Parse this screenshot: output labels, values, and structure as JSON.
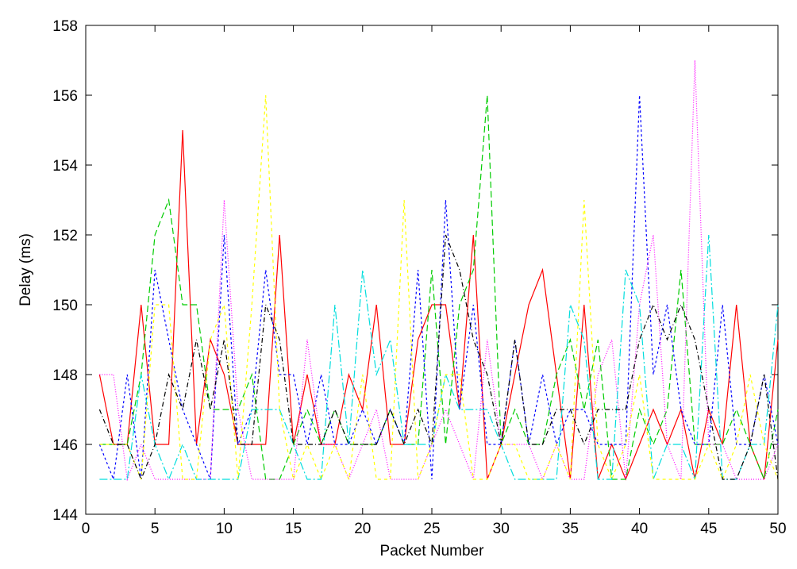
{
  "chart_data": {
    "type": "line",
    "title": "",
    "xlabel": "Packet Number",
    "ylabel": "Delay (ms)",
    "xlim": [
      0,
      50
    ],
    "ylim": [
      144,
      158
    ],
    "xticks": [
      0,
      5,
      10,
      15,
      20,
      25,
      30,
      35,
      40,
      45,
      50
    ],
    "yticks": [
      144,
      146,
      148,
      150,
      152,
      154,
      156,
      158
    ],
    "grid": false,
    "legend": "none",
    "x": [
      1,
      2,
      3,
      4,
      5,
      6,
      7,
      8,
      9,
      10,
      11,
      12,
      13,
      14,
      15,
      16,
      17,
      18,
      19,
      20,
      21,
      22,
      23,
      24,
      25,
      26,
      27,
      28,
      29,
      30,
      31,
      32,
      33,
      34,
      35,
      36,
      37,
      38,
      39,
      40,
      41,
      42,
      43,
      44,
      45,
      46,
      47,
      48,
      49,
      50
    ],
    "series": [
      {
        "color": "#ff0000",
        "dash": "solid",
        "values": [
          148,
          146,
          146,
          150,
          146,
          146,
          155,
          146,
          149,
          148,
          146,
          146,
          146,
          152,
          146,
          148,
          146,
          146,
          148,
          147,
          150,
          146,
          146,
          149,
          150,
          150,
          147,
          152,
          145,
          146,
          148,
          150,
          151,
          148,
          145,
          150,
          145,
          146,
          145,
          146,
          147,
          146,
          147,
          145,
          147,
          146,
          150,
          146,
          145,
          149
        ]
      },
      {
        "color": "#00cc00",
        "dash": "8,4",
        "values": [
          146,
          146,
          146,
          148,
          152,
          153,
          150,
          150,
          147,
          147,
          147,
          148,
          145,
          145,
          146,
          147,
          146,
          147,
          146,
          146,
          146,
          147,
          146,
          146,
          151,
          146,
          150,
          151,
          156,
          146,
          147,
          146,
          146,
          148,
          149,
          147,
          149,
          145,
          145,
          147,
          146,
          147,
          151,
          146,
          146,
          146,
          147,
          146,
          145,
          147
        ]
      },
      {
        "color": "#0000ff",
        "dash": "3,3",
        "values": [
          146,
          145,
          148,
          145,
          151,
          149,
          147,
          146,
          145,
          152,
          146,
          147,
          151,
          148,
          148,
          146,
          148,
          146,
          146,
          147,
          146,
          147,
          146,
          151,
          145,
          153,
          147,
          150,
          146,
          146,
          149,
          146,
          148,
          146,
          147,
          147,
          146,
          146,
          146,
          156,
          148,
          150,
          147,
          146,
          146,
          150,
          146,
          146,
          148,
          146
        ]
      },
      {
        "color": "#ff00ff",
        "dash": "1,2",
        "values": [
          148,
          148,
          145,
          146,
          145,
          145,
          145,
          145,
          145,
          153,
          147,
          145,
          145,
          145,
          145,
          149,
          146,
          146,
          145,
          146,
          147,
          145,
          145,
          145,
          146,
          147,
          146,
          145,
          149,
          146,
          146,
          146,
          145,
          146,
          145,
          145,
          148,
          149,
          145,
          150,
          152,
          146,
          145,
          157,
          146,
          146,
          145,
          145,
          145,
          146
        ]
      },
      {
        "color": "#00dddd",
        "dash": "10,3,2,3",
        "values": [
          145,
          145,
          145,
          148,
          146,
          145,
          146,
          145,
          145,
          145,
          145,
          147,
          147,
          147,
          146,
          145,
          145,
          150,
          146,
          151,
          148,
          149,
          146,
          146,
          146,
          148,
          147,
          147,
          147,
          146,
          145,
          145,
          145,
          145,
          150,
          149,
          145,
          145,
          151,
          150,
          145,
          146,
          146,
          145,
          152,
          145,
          145,
          146,
          146,
          150
        ]
      },
      {
        "color": "#ffff00",
        "dash": "4,4",
        "values": [
          146,
          146,
          146,
          145,
          150,
          150,
          145,
          145,
          149,
          150,
          145,
          150,
          156,
          147,
          145,
          146,
          145,
          146,
          145,
          148,
          145,
          145,
          153,
          145,
          146,
          148,
          148,
          145,
          145,
          146,
          146,
          145,
          145,
          146,
          145,
          153,
          146,
          145,
          146,
          148,
          145,
          145,
          145,
          145,
          146,
          145,
          146,
          148,
          146,
          145
        ]
      },
      {
        "color": "#000000",
        "dash": "6,3,1,3",
        "values": [
          147,
          146,
          146,
          145,
          146,
          148,
          147,
          149,
          147,
          149,
          146,
          146,
          150,
          149,
          146,
          146,
          146,
          147,
          146,
          146,
          146,
          147,
          146,
          147,
          146,
          152,
          151,
          149,
          148,
          146,
          149,
          146,
          146,
          147,
          147,
          146,
          147,
          147,
          147,
          149,
          150,
          149,
          150,
          149,
          147,
          145,
          145,
          146,
          148,
          145
        ]
      }
    ]
  }
}
